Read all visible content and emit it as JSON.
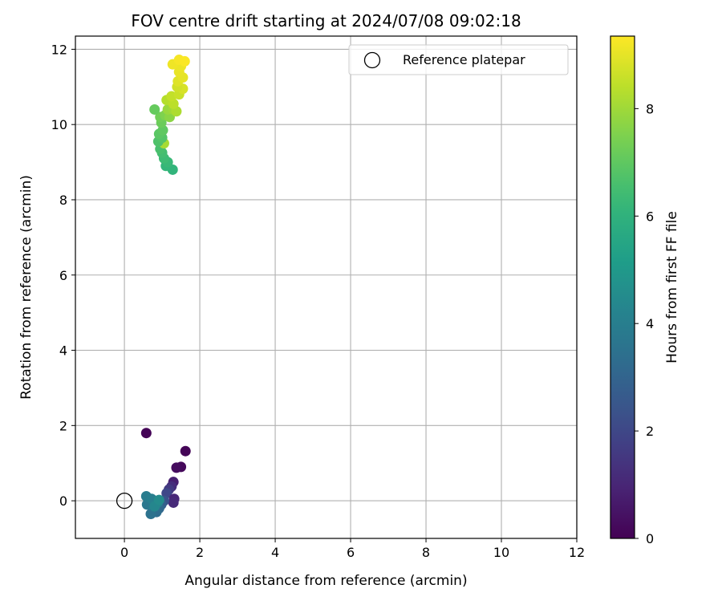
{
  "chart_data": {
    "type": "scatter",
    "title": "FOV centre drift starting at 2024/07/08 09:02:18",
    "xlabel": "Angular distance from reference (arcmin)",
    "ylabel": "Rotation from reference (arcmin)",
    "xlim": [
      -1.3,
      12.0
    ],
    "ylim": [
      -1.0,
      12.35
    ],
    "xticks": [
      0,
      2,
      4,
      6,
      8,
      10,
      12
    ],
    "yticks": [
      0,
      2,
      4,
      6,
      8,
      10,
      12
    ],
    "grid": true,
    "legend": {
      "position": "top-right",
      "entries": [
        {
          "label": "Reference platepar",
          "marker": "open-circle",
          "x": 0,
          "y": 0
        }
      ]
    },
    "colorbar": {
      "label": "Hours from first FF file",
      "colormap": "viridis",
      "min": 0,
      "max": 9.35,
      "ticks": [
        0,
        2,
        4,
        6,
        8
      ]
    },
    "points": [
      {
        "x": 0.58,
        "y": 1.8,
        "c": 0.05
      },
      {
        "x": 1.62,
        "y": 1.32,
        "c": 0.1
      },
      {
        "x": 1.5,
        "y": 0.9,
        "c": 0.2
      },
      {
        "x": 1.38,
        "y": 0.88,
        "c": 0.3
      },
      {
        "x": 1.3,
        "y": 0.5,
        "c": 0.8
      },
      {
        "x": 1.25,
        "y": 0.38,
        "c": 1.2
      },
      {
        "x": 1.18,
        "y": 0.3,
        "c": 1.6
      },
      {
        "x": 1.12,
        "y": 0.2,
        "c": 2.0
      },
      {
        "x": 1.32,
        "y": 0.05,
        "c": 1.0
      },
      {
        "x": 1.3,
        "y": -0.05,
        "c": 1.1
      },
      {
        "x": 1.05,
        "y": 0.0,
        "c": 2.4
      },
      {
        "x": 0.98,
        "y": -0.1,
        "c": 2.8
      },
      {
        "x": 0.92,
        "y": -0.2,
        "c": 3.1
      },
      {
        "x": 0.85,
        "y": -0.3,
        "c": 3.3
      },
      {
        "x": 0.7,
        "y": -0.35,
        "c": 3.5
      },
      {
        "x": 0.6,
        "y": -0.1,
        "c": 3.7
      },
      {
        "x": 0.58,
        "y": 0.12,
        "c": 3.9
      },
      {
        "x": 0.72,
        "y": 0.05,
        "c": 4.0
      },
      {
        "x": 0.88,
        "y": -0.05,
        "c": 4.1
      },
      {
        "x": 0.8,
        "y": -0.15,
        "c": 4.3
      },
      {
        "x": 0.92,
        "y": 0.02,
        "c": 4.5
      },
      {
        "x": 1.28,
        "y": 8.8,
        "c": 6.1
      },
      {
        "x": 1.1,
        "y": 8.9,
        "c": 6.2
      },
      {
        "x": 1.15,
        "y": 9.0,
        "c": 6.3
      },
      {
        "x": 1.05,
        "y": 9.1,
        "c": 6.4
      },
      {
        "x": 1.0,
        "y": 9.25,
        "c": 6.5
      },
      {
        "x": 0.95,
        "y": 9.35,
        "c": 6.6
      },
      {
        "x": 1.05,
        "y": 9.5,
        "c": 8.1
      },
      {
        "x": 0.9,
        "y": 9.55,
        "c": 6.7
      },
      {
        "x": 1.0,
        "y": 9.65,
        "c": 6.8
      },
      {
        "x": 0.92,
        "y": 9.75,
        "c": 6.9
      },
      {
        "x": 1.02,
        "y": 9.85,
        "c": 7.0
      },
      {
        "x": 0.98,
        "y": 10.05,
        "c": 7.2
      },
      {
        "x": 0.95,
        "y": 10.2,
        "c": 7.3
      },
      {
        "x": 1.08,
        "y": 10.25,
        "c": 7.5
      },
      {
        "x": 0.8,
        "y": 10.4,
        "c": 7.1
      },
      {
        "x": 1.2,
        "y": 10.2,
        "c": 7.7
      },
      {
        "x": 1.15,
        "y": 10.4,
        "c": 7.9
      },
      {
        "x": 1.3,
        "y": 10.4,
        "c": 8.0
      },
      {
        "x": 1.38,
        "y": 10.35,
        "c": 8.2
      },
      {
        "x": 1.12,
        "y": 10.65,
        "c": 8.3
      },
      {
        "x": 1.3,
        "y": 10.55,
        "c": 8.4
      },
      {
        "x": 1.25,
        "y": 10.75,
        "c": 8.5
      },
      {
        "x": 1.45,
        "y": 10.8,
        "c": 8.6
      },
      {
        "x": 1.55,
        "y": 10.95,
        "c": 8.8
      },
      {
        "x": 1.4,
        "y": 11.0,
        "c": 8.7
      },
      {
        "x": 1.42,
        "y": 11.15,
        "c": 8.9
      },
      {
        "x": 1.55,
        "y": 11.25,
        "c": 9.0
      },
      {
        "x": 1.45,
        "y": 11.4,
        "c": 9.05
      },
      {
        "x": 1.5,
        "y": 11.55,
        "c": 9.1
      },
      {
        "x": 1.28,
        "y": 11.6,
        "c": 9.15
      },
      {
        "x": 1.45,
        "y": 11.72,
        "c": 9.25
      },
      {
        "x": 1.6,
        "y": 11.68,
        "c": 9.3
      }
    ]
  }
}
